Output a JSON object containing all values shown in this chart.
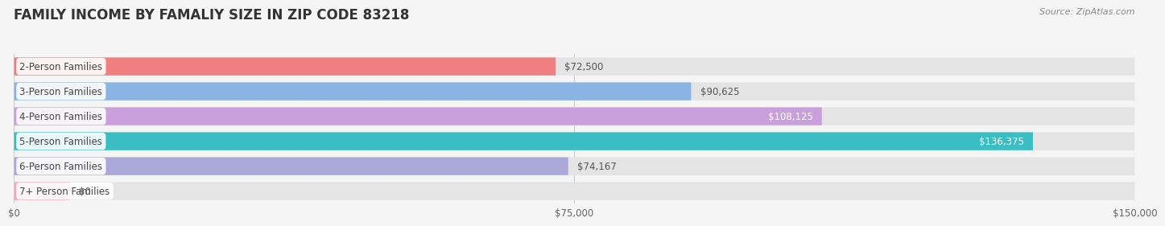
{
  "title": "FAMILY INCOME BY FAMALIY SIZE IN ZIP CODE 83218",
  "source": "Source: ZipAtlas.com",
  "categories": [
    "2-Person Families",
    "3-Person Families",
    "4-Person Families",
    "5-Person Families",
    "6-Person Families",
    "7+ Person Families"
  ],
  "values": [
    72500,
    90625,
    108125,
    136375,
    74167,
    0
  ],
  "display_values": [
    "$72,500",
    "$90,625",
    "$108,125",
    "$136,375",
    "$74,167",
    "$0"
  ],
  "bar_colors": [
    "#F08080",
    "#8AB4E3",
    "#C9A0DC",
    "#3BBDC4",
    "#A9A8D8",
    "#F4A7C0"
  ],
  "xmax": 150000,
  "xmin": 0,
  "xticks": [
    0,
    75000,
    150000
  ],
  "xtick_labels": [
    "$0",
    "$75,000",
    "$150,000"
  ],
  "background_color": "#f5f5f5",
  "bar_bg_color": "#e4e4e4",
  "title_fontsize": 12,
  "label_fontsize": 8.5,
  "source_fontsize": 8,
  "category_fontsize": 8.5,
  "value_inside_threshold": 100000,
  "seven_plus_bar_width": 7500
}
